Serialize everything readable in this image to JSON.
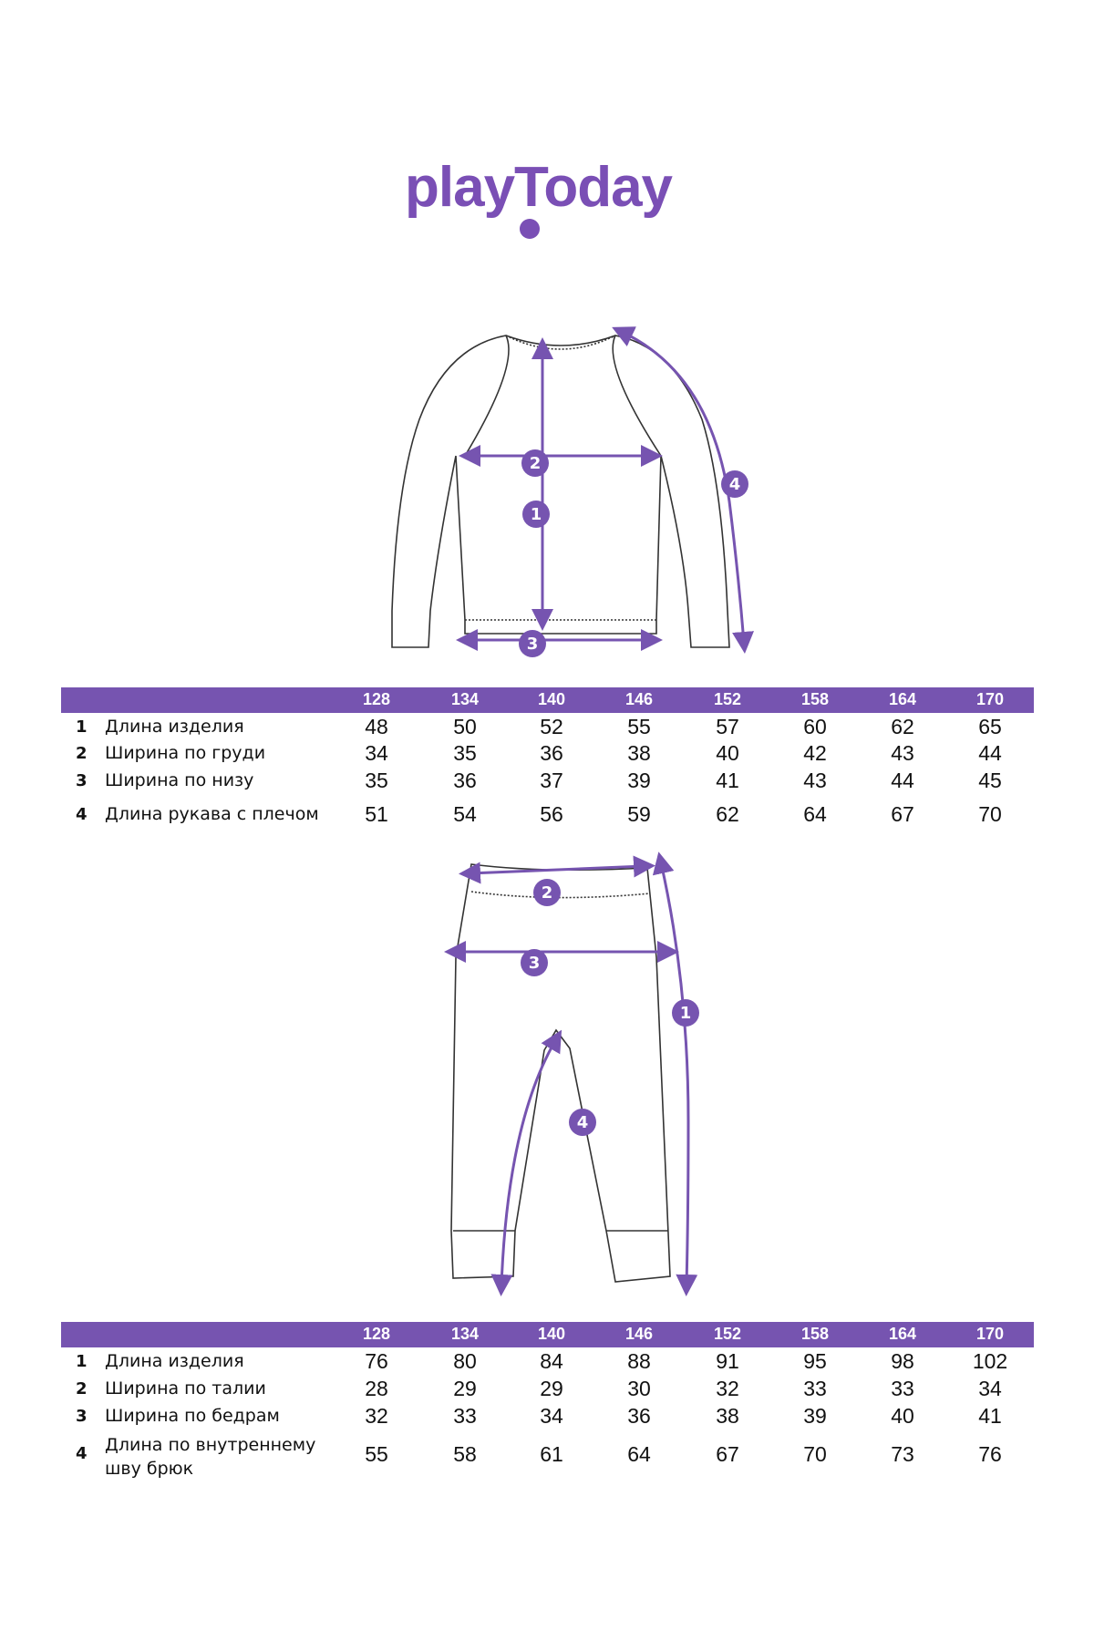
{
  "brand": {
    "logo_text": "playToday",
    "color": "#7a4fb5"
  },
  "accent_color": "#7654b0",
  "sweater_table": {
    "sizes": [
      "128",
      "134",
      "140",
      "146",
      "152",
      "158",
      "164",
      "170"
    ],
    "rows": [
      {
        "num": "1",
        "label": "Длина изделия",
        "values": [
          "48",
          "50",
          "52",
          "55",
          "57",
          "60",
          "62",
          "65"
        ]
      },
      {
        "num": "2",
        "label": "Ширина по груди",
        "values": [
          "34",
          "35",
          "36",
          "38",
          "40",
          "42",
          "43",
          "44"
        ]
      },
      {
        "num": "3",
        "label": "Ширина по низу",
        "values": [
          "35",
          "36",
          "37",
          "39",
          "41",
          "43",
          "44",
          "45"
        ]
      },
      {
        "num": "4",
        "label": "Длина рукава с плечом",
        "values": [
          "51",
          "54",
          "56",
          "59",
          "62",
          "64",
          "67",
          "70"
        ]
      }
    ]
  },
  "pants_table": {
    "sizes": [
      "128",
      "134",
      "140",
      "146",
      "152",
      "158",
      "164",
      "170"
    ],
    "rows": [
      {
        "num": "1",
        "label": "Длина изделия",
        "values": [
          "76",
          "80",
          "84",
          "88",
          "91",
          "95",
          "98",
          "102"
        ]
      },
      {
        "num": "2",
        "label": "Ширина по талии",
        "values": [
          "28",
          "29",
          "29",
          "30",
          "32",
          "33",
          "33",
          "34"
        ]
      },
      {
        "num": "3",
        "label": "Ширина по бедрам",
        "values": [
          "32",
          "33",
          "34",
          "36",
          "38",
          "39",
          "40",
          "41"
        ]
      },
      {
        "num": "4",
        "label": "Длина по внутреннему шву брюк",
        "values": [
          "55",
          "58",
          "61",
          "64",
          "67",
          "70",
          "73",
          "76"
        ]
      }
    ]
  },
  "sweater_markers": [
    "1",
    "2",
    "3",
    "4"
  ],
  "pants_markers": [
    "1",
    "2",
    "3",
    "4"
  ]
}
